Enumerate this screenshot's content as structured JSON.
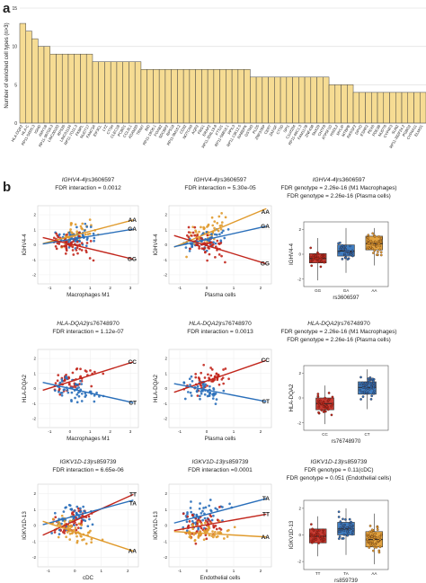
{
  "panel_a_letter": "a",
  "panel_b_letter": "b",
  "chart_data": [
    {
      "type": "bar",
      "panel": "a",
      "ylabel": "Number of enriched cell types (n>3)",
      "ylim": [
        0,
        15
      ],
      "yticks": [
        0,
        5,
        10,
        15
      ],
      "grid": true,
      "bar_color": "#f6dc93",
      "categories": [
        "HLA-DQA2",
        "HLA-C",
        "RP11-545I5.3",
        "IGHD",
        "AMY1B",
        "RP11-367G6.3",
        "LINC00163",
        "RPS26",
        "LINC01124",
        "RP11-7O11.3",
        "FKBPL",
        "NUDT17",
        "FAM73A",
        "EIF3CL",
        "LYZ",
        "CTSH",
        "CLEC1B",
        "PCBD1",
        "CCL3L1",
        "ADAM20",
        "TRIM7",
        "BID",
        "RP11-19O6.1",
        "FOXB2",
        "SDCBP2",
        "RPS18",
        "RP11-9M16.2",
        "CD32",
        "NOTCH3",
        "AQP2",
        "FRG1",
        "ERAP2",
        "RP11-304L19.8",
        "FTSJ1",
        "RP11-56B16.1",
        "PPIL3",
        "RP11-13K12.5",
        "RABEPK",
        "GSTM3",
        "PLD5",
        "ZNF37BP",
        "CERT",
        "ZAFGF",
        "CTSD",
        "SPI1",
        "C1orf204",
        "RP11-46C1.3",
        "FAM117B",
        "ZNF438",
        "SNX29",
        "CHTF8",
        "ATP5F1D",
        "HSDL2",
        "MYLIP",
        "MTBPB",
        "RASSF2",
        "DPYD",
        "ESRP2",
        "PEX6",
        "PDE3B",
        "NUDT6",
        "CYP4F3",
        "SUN2",
        "RP11-382F24.2",
        "PGBD2",
        "CYP4A11",
        "ELMO1"
      ],
      "values": [
        13,
        12,
        11,
        10,
        10,
        9,
        9,
        9,
        9,
        9,
        9,
        9,
        8,
        8,
        8,
        8,
        8,
        8,
        8,
        8,
        7,
        7,
        7,
        7,
        7,
        7,
        7,
        7,
        7,
        7,
        7,
        7,
        7,
        7,
        7,
        7,
        7,
        7,
        6,
        6,
        6,
        6,
        6,
        6,
        6,
        6,
        6,
        6,
        6,
        6,
        6,
        5,
        5,
        5,
        5,
        4,
        4,
        4,
        4,
        4,
        4,
        4,
        4,
        4,
        4,
        4,
        4
      ]
    },
    {
      "type": "scatter",
      "panel": "b",
      "gene": "IGHV4-4",
      "snp": "rs3606597",
      "title_line2": "FDR interaction = 0.0012",
      "xlabel": "Macrophages M1",
      "ylabel": "IGHV4-4",
      "xticks": [
        "-1",
        "0",
        "1",
        "2",
        "3"
      ],
      "xlim": [
        -1.6,
        3.4
      ],
      "ylim": [
        -2.6,
        2.6
      ],
      "yticks": [
        "-2",
        "-1",
        "0",
        "1",
        "2"
      ],
      "series": [
        {
          "name": "AA",
          "color": "#e09a2c",
          "slope": 0.35,
          "intercept": 0.55
        },
        {
          "name": "GA",
          "color": "#2a6fba",
          "slope": 0.22,
          "intercept": 0.35
        },
        {
          "name": "GG",
          "color": "#c2261c",
          "slope": -0.32,
          "intercept": 0.05
        }
      ]
    },
    {
      "type": "scatter",
      "panel": "b",
      "gene": "IGHV4-4",
      "snp": "rs3606597",
      "title_line2": "FDR interaction = 5.30e-05",
      "xlabel": "Plasma cells",
      "ylabel": "IGHV4-4",
      "xticks": [
        "-1",
        "0",
        "1",
        "2"
      ],
      "xlim": [
        -1.4,
        2.4
      ],
      "ylim": [
        -2.6,
        2.6
      ],
      "yticks": [
        "-2",
        "-1",
        "0",
        "1",
        "2"
      ],
      "series": [
        {
          "name": "AA",
          "color": "#e09a2c",
          "slope": 0.75,
          "intercept": 0.75
        },
        {
          "name": "GA",
          "color": "#2a6fba",
          "slope": 0.4,
          "intercept": 0.35
        },
        {
          "name": "GG",
          "color": "#c2261c",
          "slope": -0.55,
          "intercept": -0.05
        }
      ]
    },
    {
      "type": "boxplot",
      "panel": "b",
      "gene": "IGHV4-4",
      "snp": "rs3606597",
      "title_line2": "FDR genotype = 2.26e-16 (M1 Macrophages)",
      "title_line3": "FDR genotype = 2.26e-16 (Plasma cells)",
      "xlabel": "rs3606597",
      "ylabel": "IGHV4-4",
      "categories": [
        "GG",
        "GA",
        "AA"
      ],
      "colors": [
        "#c2261c",
        "#2a6fba",
        "#e09a2c"
      ],
      "yticks": [
        "-2",
        "0",
        "2"
      ],
      "ylim": [
        -2.6,
        2.6
      ],
      "boxes": [
        {
          "min": -2.1,
          "q1": -0.7,
          "median": -0.35,
          "q3": 0.05,
          "max": 1.3
        },
        {
          "min": -1.5,
          "q1": -0.15,
          "median": 0.25,
          "q3": 0.75,
          "max": 2.1
        },
        {
          "min": -0.9,
          "q1": 0.35,
          "median": 0.85,
          "q3": 1.45,
          "max": 2.1
        }
      ]
    },
    {
      "type": "scatter",
      "panel": "b",
      "gene": "HLA-DQA2",
      "snp": "rs76748970",
      "title_line2": "FDR interaction = 1.12e-07",
      "xlabel": "Macrophages M1",
      "ylabel": "HLA-DQA2",
      "xticks": [
        "-1",
        "0",
        "1",
        "2",
        "3"
      ],
      "xlim": [
        -1.6,
        3.4
      ],
      "ylim": [
        -2.6,
        2.6
      ],
      "yticks": [
        "-2",
        "-1",
        "0",
        "1",
        "2"
      ],
      "series": [
        {
          "name": "CC",
          "color": "#c2261c",
          "slope": 0.42,
          "intercept": 0.45
        },
        {
          "name": "CT",
          "color": "#2a6fba",
          "slope": -0.3,
          "intercept": 0.0
        }
      ]
    },
    {
      "type": "scatter",
      "panel": "b",
      "gene": "HLA-DQA2",
      "snp": "rs76748970",
      "title_line2": "FDR interaction = 0.0013",
      "xlabel": "Plasma cells",
      "ylabel": "HLA-DQA2",
      "xticks": [
        "-1",
        "0",
        "1",
        "2"
      ],
      "xlim": [
        -1.4,
        2.4
      ],
      "ylim": [
        -2.6,
        2.6
      ],
      "yticks": [
        "-2",
        "-1",
        "0",
        "1",
        "2"
      ],
      "series": [
        {
          "name": "CC",
          "color": "#c2261c",
          "slope": 0.62,
          "intercept": 0.5
        },
        {
          "name": "CT",
          "color": "#2a6fba",
          "slope": -0.35,
          "intercept": -0.1
        }
      ]
    },
    {
      "type": "boxplot",
      "panel": "b",
      "gene": "HLA-DQA2",
      "snp": "rs76748970",
      "title_line2": "FDR genotype = 2.26e-16 (M1 Macrophages)",
      "title_line3": "FDR genotype = 2.26e-16 (Plasma cells)",
      "xlabel": "rs76748970",
      "ylabel": "HLA-DQA2",
      "categories": [
        "CC",
        "CT"
      ],
      "colors": [
        "#c2261c",
        "#2a6fba"
      ],
      "yticks": [
        "-2",
        "0",
        "2"
      ],
      "ylim": [
        -2.6,
        2.6
      ],
      "boxes": [
        {
          "min": -2.1,
          "q1": -0.95,
          "median": -0.45,
          "q3": 0.0,
          "max": 1.0
        },
        {
          "min": -0.9,
          "q1": 0.3,
          "median": 0.85,
          "q3": 1.3,
          "max": 2.3
        }
      ]
    },
    {
      "type": "scatter",
      "panel": "b",
      "gene": "IGKV1D-13",
      "snp": "rs859739",
      "title_line2": "FDR interaction = 6.65e-06",
      "xlabel": "cDC",
      "ylabel": "IGKV1D-13",
      "xticks": [
        "-1",
        "0",
        "1",
        "2"
      ],
      "xlim": [
        -1.4,
        2.4
      ],
      "ylim": [
        -2.6,
        2.6
      ],
      "yticks": [
        "-2",
        "-1",
        "0",
        "1",
        "2"
      ],
      "series": [
        {
          "name": "TT",
          "color": "#c2261c",
          "slope": 0.75,
          "intercept": 0.3
        },
        {
          "name": "TA",
          "color": "#2a6fba",
          "slope": 0.45,
          "intercept": 0.6
        },
        {
          "name": "AA",
          "color": "#e09a2c",
          "slope": -0.55,
          "intercept": -0.4
        }
      ]
    },
    {
      "type": "scatter",
      "panel": "b",
      "gene": "IGKV1D-13",
      "snp": "rs859739",
      "title_line2": "FDR interaction =0.0001",
      "xlabel": "Endothelial cells",
      "ylabel": "IGKV1D-13",
      "xticks": [
        "-1",
        "0",
        "1",
        "2"
      ],
      "xlim": [
        -1.4,
        2.4
      ],
      "ylim": [
        -2.6,
        2.6
      ],
      "yticks": [
        "-2",
        "-1",
        "0",
        "1",
        "2"
      ],
      "series": [
        {
          "name": "TA",
          "color": "#2a6fba",
          "slope": 0.45,
          "intercept": 0.7
        },
        {
          "name": "TT",
          "color": "#c2261c",
          "slope": 0.3,
          "intercept": 0.05
        },
        {
          "name": "AA",
          "color": "#e09a2c",
          "slope": -0.1,
          "intercept": -0.5
        }
      ]
    },
    {
      "type": "boxplot",
      "panel": "b",
      "gene": "IGKV1D-13",
      "snp": "rs859739",
      "title_line2": "FDR genotype = 0.11(cDC)",
      "title_line3": "FDR genotype = 0.051 (Endothelial cells)",
      "xlabel": "rs859739",
      "ylabel": "IGKV1D-13",
      "categories": [
        "TT",
        "TA",
        "AA"
      ],
      "colors": [
        "#c2261c",
        "#2a6fba",
        "#e09a2c"
      ],
      "yticks": [
        "-2",
        "0",
        "2"
      ],
      "ylim": [
        -2.6,
        2.6
      ],
      "boxes": [
        {
          "min": -1.6,
          "q1": -0.6,
          "median": -0.1,
          "q3": 0.45,
          "max": 1.4
        },
        {
          "min": -1.5,
          "q1": 0.0,
          "median": 0.45,
          "q3": 0.95,
          "max": 2.0
        },
        {
          "min": -2.2,
          "q1": -0.9,
          "median": -0.35,
          "q3": 0.25,
          "max": 1.6
        }
      ]
    }
  ]
}
